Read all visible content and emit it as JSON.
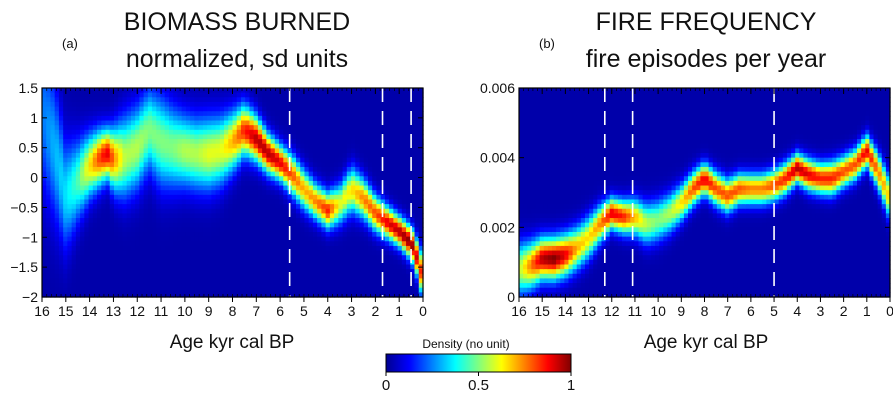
{
  "colorbar": {
    "title": "Density (no unit)",
    "ticks": [
      0,
      0.5,
      1
    ],
    "tick_labels": [
      "0",
      "0.5",
      "1"
    ],
    "colors": [
      "#00008f",
      "#0000ff",
      "#0080ff",
      "#00ffff",
      "#80ff80",
      "#ffff00",
      "#ff8000",
      "#ff0000",
      "#800000"
    ]
  },
  "chart_data": [
    {
      "type": "heatmap",
      "panel_label": "(a)",
      "title": "BIOMASS BURNED",
      "subtitle": "normalized, sd units",
      "xlabel": "Age kyr cal BP",
      "ylabel": "",
      "x_reversed": true,
      "xlim": [
        16,
        0
      ],
      "ylim": [
        -2,
        1.5
      ],
      "xticks": [
        16,
        15,
        14,
        13,
        12,
        11,
        10,
        9,
        8,
        7,
        6,
        5,
        4,
        3,
        2,
        1,
        0
      ],
      "yticks": [
        -2,
        -1.5,
        -1,
        -0.5,
        0,
        0.5,
        1,
        1.5
      ],
      "ytick_labels": [
        "−2",
        "−1.5",
        "−1",
        "−0.5",
        "0",
        "0.5",
        "1",
        "1.5"
      ],
      "dashed_vlines": [
        5.6,
        1.7,
        0.5
      ],
      "background_density": 0.03,
      "ridge": {
        "x": [
          15.9,
          15.5,
          15.0,
          14.5,
          14.0,
          13.5,
          13.2,
          13.0,
          12.5,
          12.0,
          11.5,
          11.0,
          10.5,
          10.0,
          9.5,
          9.0,
          8.5,
          8.0,
          7.5,
          7.0,
          6.5,
          6.0,
          5.5,
          5.0,
          4.5,
          4.0,
          3.5,
          3.0,
          2.5,
          2.0,
          1.5,
          1.0,
          0.5,
          0.2,
          0.0
        ],
        "y": [
          1.0,
          0.5,
          -0.3,
          -0.05,
          0.2,
          0.35,
          0.4,
          0.3,
          0.35,
          0.5,
          0.8,
          0.6,
          0.5,
          0.45,
          0.4,
          0.4,
          0.45,
          0.6,
          0.8,
          0.65,
          0.4,
          0.25,
          0.05,
          -0.2,
          -0.4,
          -0.55,
          -0.45,
          -0.2,
          -0.35,
          -0.6,
          -0.75,
          -0.9,
          -1.1,
          -1.4,
          -1.7
        ],
        "spread": [
          0.9,
          0.8,
          0.6,
          0.45,
          0.35,
          0.3,
          0.28,
          0.35,
          0.45,
          0.45,
          0.45,
          0.5,
          0.45,
          0.4,
          0.4,
          0.4,
          0.38,
          0.33,
          0.28,
          0.25,
          0.22,
          0.2,
          0.22,
          0.22,
          0.2,
          0.2,
          0.22,
          0.25,
          0.22,
          0.2,
          0.18,
          0.17,
          0.18,
          0.2,
          0.25
        ],
        "peak": [
          0.25,
          0.3,
          0.35,
          0.45,
          0.65,
          0.85,
          0.9,
          0.75,
          0.55,
          0.55,
          0.5,
          0.5,
          0.5,
          0.55,
          0.55,
          0.6,
          0.6,
          0.7,
          0.85,
          0.95,
          0.95,
          0.9,
          0.8,
          0.7,
          0.75,
          0.85,
          0.6,
          0.65,
          0.75,
          0.8,
          0.9,
          0.95,
          1.0,
          0.9,
          0.8
        ]
      }
    },
    {
      "type": "heatmap",
      "panel_label": "(b)",
      "title": "FIRE FREQUENCY",
      "subtitle": "fire episodes per year",
      "xlabel": "Age kyr cal BP",
      "ylabel": "",
      "x_reversed": true,
      "xlim": [
        16,
        0
      ],
      "ylim": [
        0,
        0.006
      ],
      "xticks": [
        16,
        15,
        14,
        13,
        12,
        11,
        10,
        9,
        8,
        7,
        6,
        5,
        4,
        3,
        2,
        1,
        0
      ],
      "yticks": [
        0,
        0.002,
        0.004,
        0.006
      ],
      "ytick_labels": [
        "0",
        "0.002",
        "0.004",
        "0.006"
      ],
      "dashed_vlines": [
        12.3,
        11.1,
        5.0
      ],
      "background_density": 0.03,
      "ridge": {
        "x": [
          16.0,
          15.5,
          15.0,
          14.5,
          14.0,
          13.5,
          13.0,
          12.5,
          12.0,
          11.5,
          11.0,
          10.5,
          10.0,
          9.5,
          9.0,
          8.5,
          8.0,
          7.5,
          7.0,
          6.5,
          6.0,
          5.5,
          5.0,
          4.5,
          4.0,
          3.5,
          3.0,
          2.5,
          2.0,
          1.5,
          1.0,
          0.5,
          0.0
        ],
        "y": [
          0.0008,
          0.0009,
          0.0011,
          0.0011,
          0.0012,
          0.0014,
          0.0017,
          0.0021,
          0.0024,
          0.0023,
          0.0023,
          0.0021,
          0.0022,
          0.0024,
          0.0027,
          0.0031,
          0.0034,
          0.0031,
          0.0029,
          0.0031,
          0.0031,
          0.0031,
          0.0032,
          0.0034,
          0.0037,
          0.0035,
          0.0034,
          0.0034,
          0.0036,
          0.0038,
          0.0042,
          0.0036,
          0.0028
        ],
        "spread": [
          0.0005,
          0.00045,
          0.0004,
          0.0004,
          0.0004,
          0.0004,
          0.0004,
          0.00035,
          0.0003,
          0.00032,
          0.00035,
          0.0004,
          0.0004,
          0.00038,
          0.00035,
          0.00032,
          0.0003,
          0.00032,
          0.00032,
          0.0003,
          0.0003,
          0.0003,
          0.0003,
          0.0003,
          0.00028,
          0.0003,
          0.0003,
          0.00032,
          0.0003,
          0.0003,
          0.0003,
          0.00035,
          0.0004
        ],
        "peak": [
          0.55,
          0.75,
          0.95,
          1.0,
          0.9,
          0.7,
          0.65,
          0.75,
          0.9,
          0.85,
          0.7,
          0.55,
          0.5,
          0.55,
          0.65,
          0.8,
          0.9,
          0.8,
          0.8,
          0.8,
          0.75,
          0.75,
          0.8,
          0.85,
          0.95,
          0.9,
          0.85,
          0.85,
          0.8,
          0.8,
          0.9,
          0.75,
          0.65
        ]
      }
    }
  ]
}
